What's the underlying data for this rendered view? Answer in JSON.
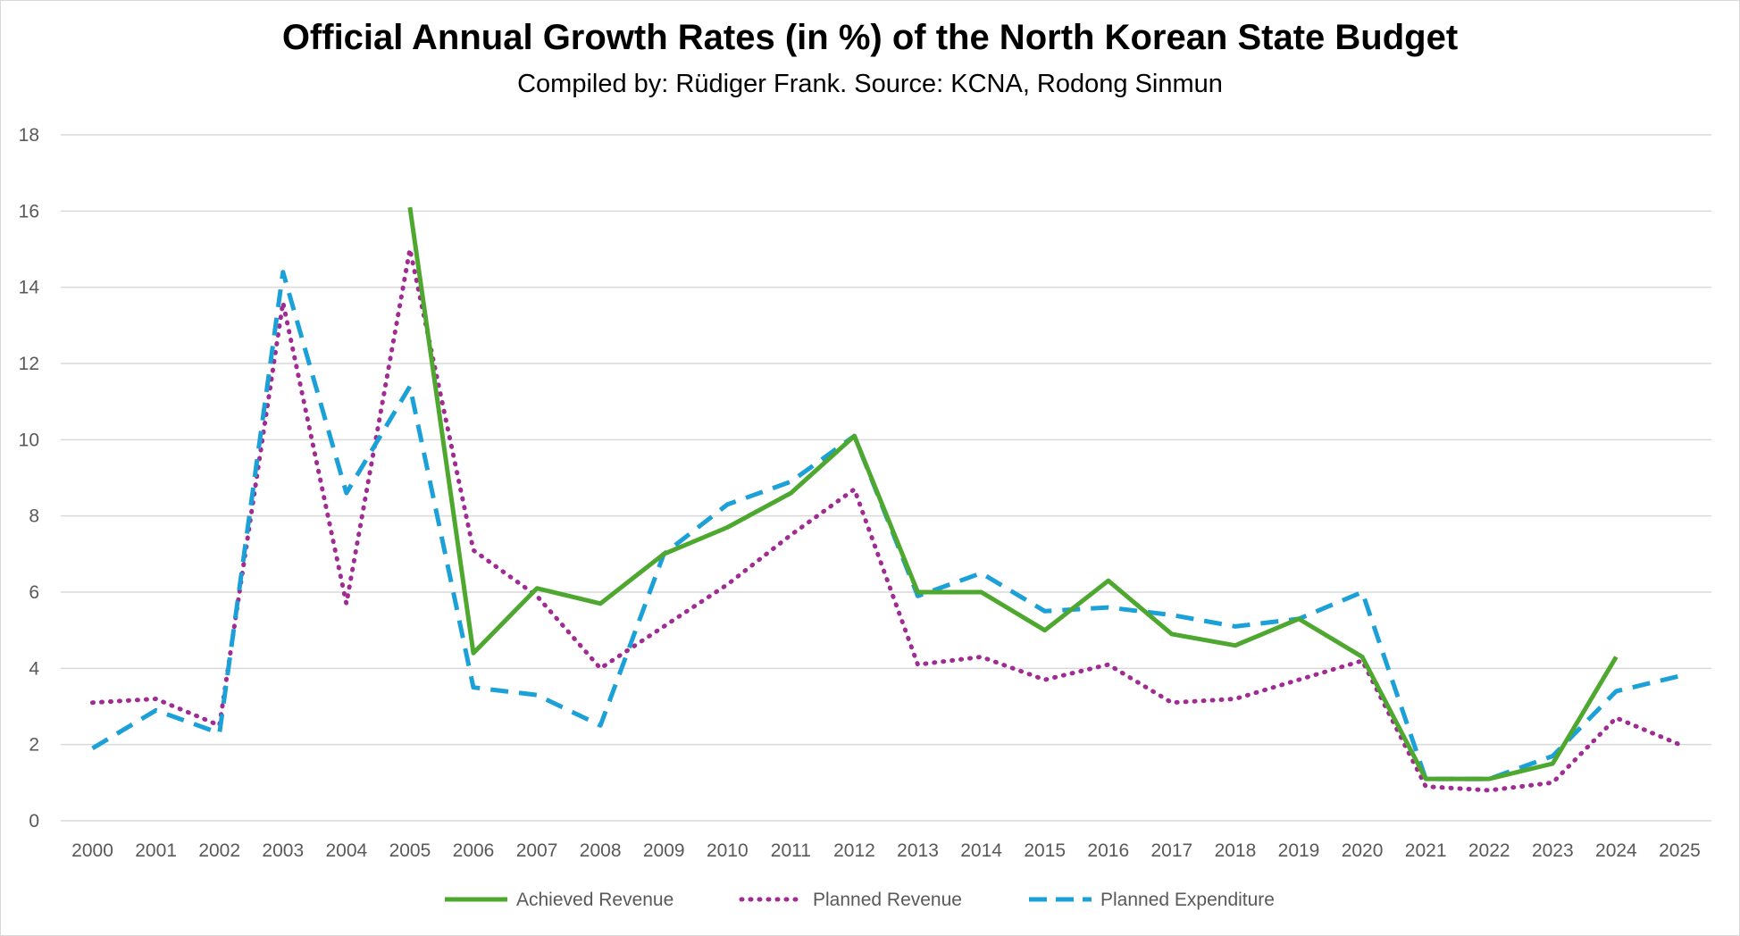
{
  "chart_data": {
    "type": "line",
    "title": "Official Annual Growth Rates (in %) of the North Korean State Budget",
    "subtitle": "Compiled by: Rüdiger Frank. Source: KCNA, Rodong Sinmun",
    "xlabel": "",
    "ylabel": "",
    "ylim": [
      0,
      18
    ],
    "yticks": [
      "0",
      "2",
      "4",
      "6",
      "8",
      "10",
      "12",
      "14",
      "16",
      "18"
    ],
    "grid": true,
    "legend_position": "bottom",
    "categories": [
      "2000",
      "2001",
      "2002",
      "2003",
      "2004",
      "2005",
      "2006",
      "2007",
      "2008",
      "2009",
      "2010",
      "2011",
      "2012",
      "2013",
      "2014",
      "2015",
      "2016",
      "2017",
      "2018",
      "2019",
      "2020",
      "2021",
      "2022",
      "2023",
      "2024",
      "2025"
    ],
    "series": [
      {
        "name": "Achieved Revenue",
        "color": "#4ea72e",
        "style": "solid",
        "values": [
          null,
          null,
          null,
          null,
          null,
          16.1,
          4.4,
          6.1,
          5.7,
          7.0,
          7.7,
          8.6,
          10.1,
          6.0,
          6.0,
          5.0,
          6.3,
          4.9,
          4.6,
          5.3,
          4.3,
          1.1,
          1.1,
          1.5,
          4.3,
          null
        ]
      },
      {
        "name": "Planned Revenue",
        "color": "#a02b93",
        "style": "dotted",
        "values": [
          3.1,
          3.2,
          2.5,
          13.6,
          5.7,
          15.0,
          7.1,
          5.9,
          4.0,
          5.1,
          6.2,
          7.5,
          8.7,
          4.1,
          4.3,
          3.7,
          4.1,
          3.1,
          3.2,
          3.7,
          4.2,
          0.9,
          0.8,
          1.0,
          2.7,
          2.0
        ]
      },
      {
        "name": "Planned Expenditure",
        "color": "#1ba1d8",
        "style": "dashed",
        "values": [
          1.9,
          2.9,
          2.3,
          14.4,
          8.6,
          11.4,
          3.5,
          3.3,
          2.5,
          7.0,
          8.3,
          8.9,
          10.1,
          5.9,
          6.5,
          5.5,
          5.6,
          5.4,
          5.1,
          5.3,
          6.0,
          1.1,
          1.1,
          1.7,
          3.4,
          3.8
        ]
      }
    ]
  }
}
